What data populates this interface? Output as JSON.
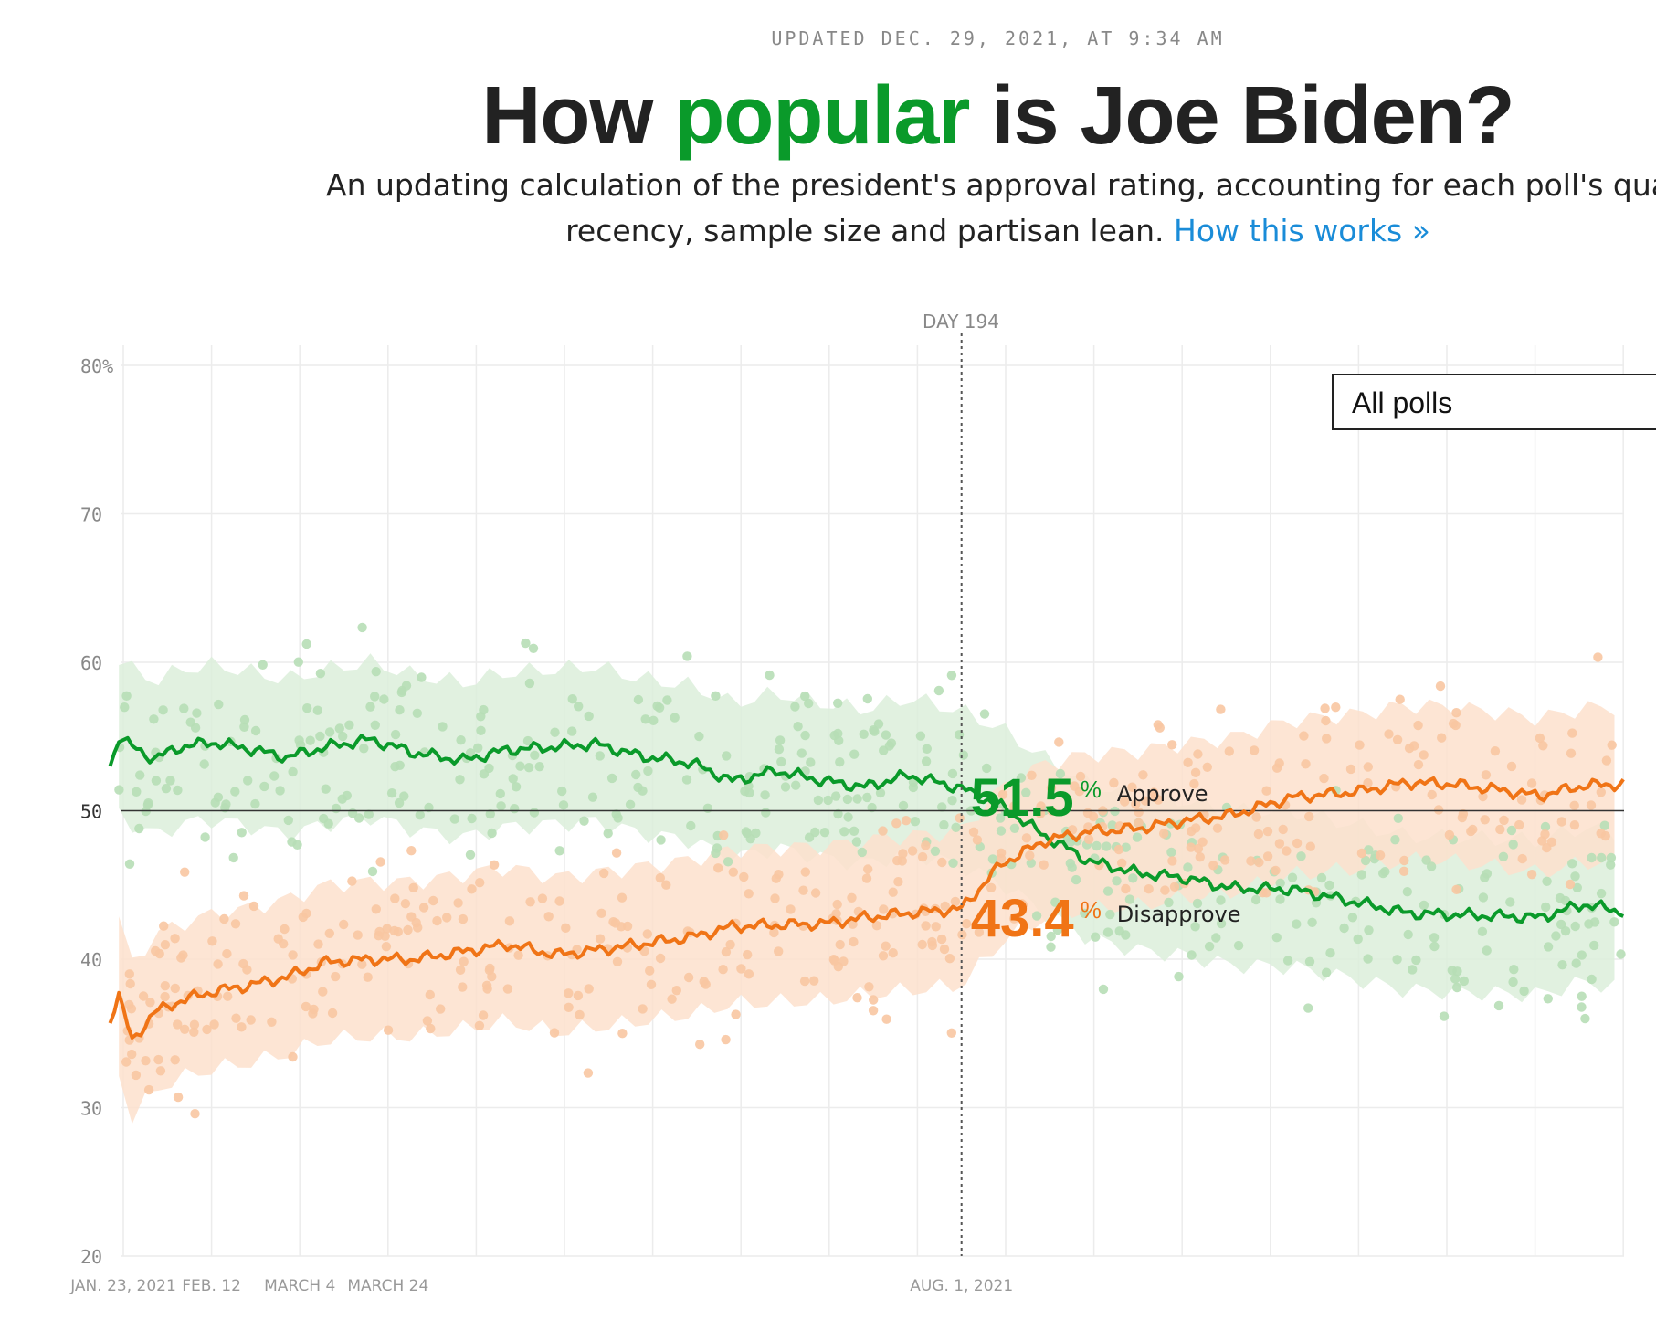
{
  "header": {
    "updated": "UPDATED DEC. 29, 2021, AT 9:34 AM",
    "title_pre": "How",
    "title_highlight": "popular",
    "title_post": "is Joe Biden?",
    "subtitle_line1": "An updating calculation of the president's approval rating, accounting for each poll's qua",
    "subtitle_line2": "recency, sample size and partisan lean.",
    "how_link": "How this works »"
  },
  "filter": {
    "selected": "All polls"
  },
  "marker": {
    "label": "DAY 194"
  },
  "colors": {
    "approve": "#0a9a2a",
    "disapprove": "#f07416",
    "approve_band": "#dcefdb",
    "disapprove_band": "#fde0cc",
    "approve_dot": "#b7deb6",
    "disapprove_dot": "#f8c6a2"
  },
  "chart_data": {
    "type": "line",
    "x_type": "date",
    "ylim": [
      20,
      80
    ],
    "y_ticks": [
      "80%",
      "70",
      "60",
      "50",
      "40",
      "30",
      "20"
    ],
    "y_tick_values": [
      80,
      70,
      60,
      50,
      40,
      30,
      20
    ],
    "x_tick_labels": [
      {
        "date": "2021-01-23",
        "label": "JAN. 23, 2021"
      },
      {
        "date": "2021-02-12",
        "label": "FEB. 12"
      },
      {
        "date": "2021-03-04",
        "label": "MARCH 4"
      },
      {
        "date": "2021-03-24",
        "label": "MARCH 24"
      },
      {
        "date": "2021-08-01",
        "label": "AUG. 1, 2021"
      }
    ],
    "gridline_interval_days": 20,
    "highlight_date": "2021-08-01",
    "highlight_values": {
      "approve": "51.5",
      "disapprove": "43.4",
      "unit": "%",
      "approve_label": "Approve",
      "disapprove_label": "Disapprove"
    },
    "series": [
      {
        "name": "Approve",
        "x": [
          "2021-01-20",
          "2021-01-22",
          "2021-01-25",
          "2021-01-30",
          "2021-02-05",
          "2021-02-12",
          "2021-02-20",
          "2021-03-01",
          "2021-03-10",
          "2021-03-20",
          "2021-03-30",
          "2021-04-10",
          "2021-04-20",
          "2021-05-01",
          "2021-05-10",
          "2021-05-20",
          "2021-06-01",
          "2021-06-10",
          "2021-06-20",
          "2021-07-01",
          "2021-07-10",
          "2021-07-20",
          "2021-08-01",
          "2021-08-10",
          "2021-08-20",
          "2021-08-30",
          "2021-09-10",
          "2021-09-20",
          "2021-10-01",
          "2021-10-15",
          "2021-10-30",
          "2021-11-10",
          "2021-11-20",
          "2021-12-01",
          "2021-12-10",
          "2021-12-20",
          "2021-12-29"
        ],
        "y": [
          53,
          55,
          54.3,
          53.5,
          54.3,
          54.6,
          54.2,
          53.6,
          54.3,
          54.8,
          53.9,
          53.4,
          54.1,
          54.3,
          54.5,
          53.7,
          53.2,
          52.0,
          52.7,
          52.0,
          51.6,
          52.4,
          51.5,
          50.3,
          48.3,
          46.6,
          45.8,
          45.5,
          44.8,
          44.7,
          43.8,
          43.1,
          43.0,
          42.9,
          42.8,
          43.7,
          43.2
        ]
      },
      {
        "name": "Disapprove",
        "x": [
          "2021-01-20",
          "2021-01-22",
          "2021-01-25",
          "2021-01-30",
          "2021-02-05",
          "2021-02-12",
          "2021-02-20",
          "2021-03-01",
          "2021-03-10",
          "2021-03-20",
          "2021-03-30",
          "2021-04-10",
          "2021-04-20",
          "2021-05-01",
          "2021-05-10",
          "2021-05-20",
          "2021-06-01",
          "2021-06-10",
          "2021-06-20",
          "2021-07-01",
          "2021-07-10",
          "2021-07-20",
          "2021-08-01",
          "2021-08-10",
          "2021-08-20",
          "2021-08-30",
          "2021-09-10",
          "2021-09-20",
          "2021-10-01",
          "2021-10-15",
          "2021-10-30",
          "2021-11-10",
          "2021-11-20",
          "2021-12-01",
          "2021-12-10",
          "2021-12-20",
          "2021-12-29"
        ],
        "y": [
          36,
          37.5,
          34.5,
          36.4,
          37.2,
          37.8,
          38.2,
          38.8,
          39.8,
          40.0,
          40.0,
          40.5,
          41.0,
          40.3,
          40.6,
          41.0,
          41.5,
          42.2,
          42.3,
          42.4,
          42.8,
          43.1,
          43.4,
          46.4,
          48.0,
          48.6,
          48.8,
          49.3,
          49.7,
          50.9,
          51.3,
          51.9,
          51.8,
          51.4,
          51.0,
          51.7,
          51.8
        ]
      }
    ]
  }
}
